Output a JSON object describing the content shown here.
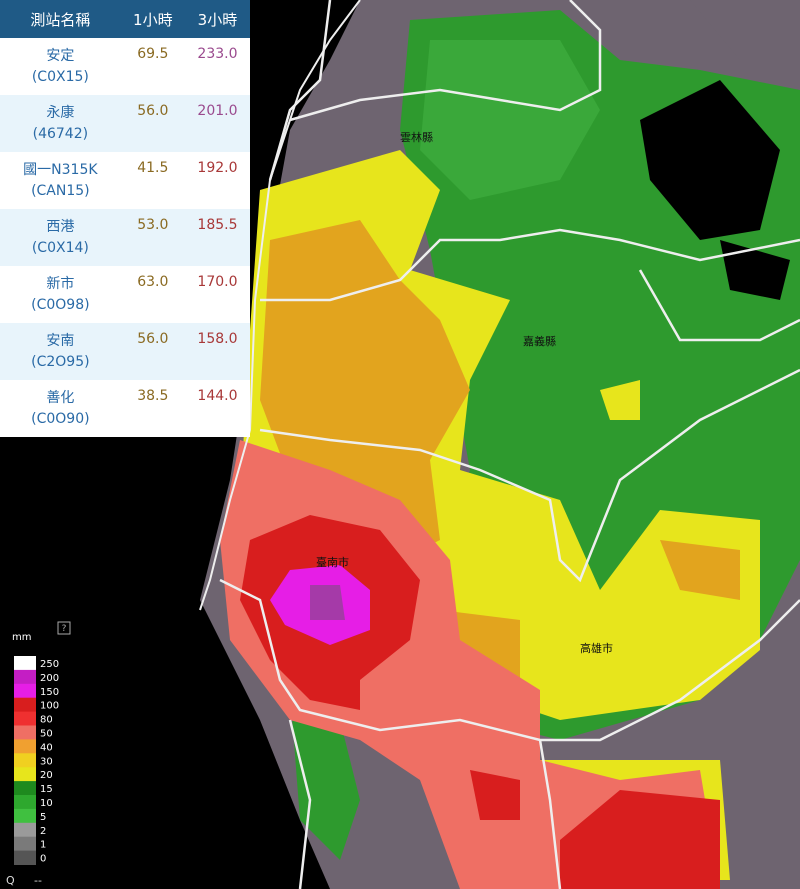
{
  "table": {
    "headers": [
      "測站名稱",
      "1小時",
      "3小時"
    ],
    "rows": [
      [
        "安定",
        "(C0X15)",
        "69.5",
        "233.0"
      ],
      [
        "永康",
        "(46742)",
        "56.0",
        "201.0"
      ],
      [
        "國一N315K",
        "(CAN15)",
        "41.5",
        "192.0"
      ],
      [
        "西港",
        "(C0X14)",
        "53.0",
        "185.5"
      ],
      [
        "新市",
        "(C0O98)",
        "63.0",
        "170.0"
      ],
      [
        "安南",
        "(C2O95)",
        "56.0",
        "158.0"
      ],
      [
        "善化",
        "(C0O90)",
        "38.5",
        "144.0"
      ]
    ]
  },
  "map": {
    "labels": [
      "雲林縣",
      "嘉義縣",
      "臺南市",
      "高雄市"
    ]
  },
  "legend": {
    "unit": "mm",
    "help": "?",
    "levels": [
      "250",
      "200",
      "150",
      "100",
      "80",
      "50",
      "40",
      "30",
      "20",
      "15",
      "10",
      "5",
      "2",
      "1",
      "0"
    ]
  },
  "footer": {
    "left": "Q",
    "right": "--"
  }
}
